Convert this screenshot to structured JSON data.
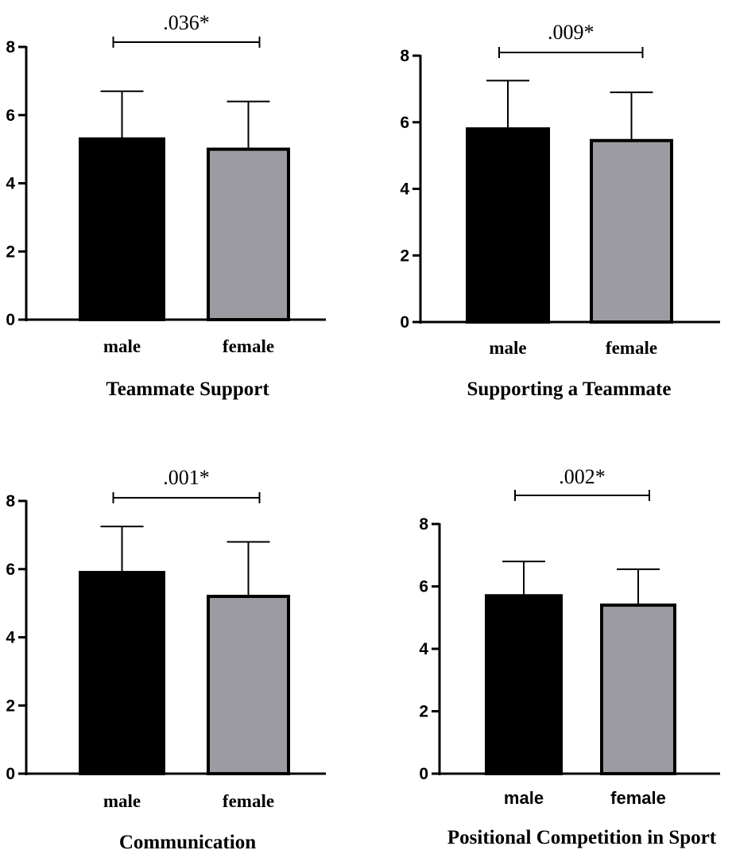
{
  "chart_data": [
    {
      "type": "bar",
      "title": "Teammate Support",
      "categories": [
        "male",
        "female"
      ],
      "values": [
        5.3,
        5.0
      ],
      "error_upper": [
        6.7,
        6.4
      ],
      "ylim": [
        0,
        8
      ],
      "yticks": [
        0,
        2,
        4,
        6,
        8
      ],
      "colors": [
        "#000000",
        "#9c9ba1"
      ],
      "significance": {
        "label": ".036*",
        "between": [
          "male",
          "female"
        ]
      },
      "grid": false,
      "xlabel": "",
      "ylabel": ""
    },
    {
      "type": "bar",
      "title": "Supporting a Teammate",
      "categories": [
        "male",
        "female"
      ],
      "values": [
        5.8,
        5.45
      ],
      "error_upper": [
        7.25,
        6.9
      ],
      "ylim": [
        0,
        8
      ],
      "yticks": [
        0,
        2,
        4,
        6,
        8
      ],
      "colors": [
        "#000000",
        "#9c9ba1"
      ],
      "significance": {
        "label": ".009*",
        "between": [
          "male",
          "female"
        ]
      },
      "grid": false,
      "xlabel": "",
      "ylabel": ""
    },
    {
      "type": "bar",
      "title": "Communication",
      "categories": [
        "male",
        "female"
      ],
      "values": [
        5.9,
        5.2
      ],
      "error_upper": [
        7.25,
        6.8
      ],
      "ylim": [
        0,
        8
      ],
      "yticks": [
        0,
        2,
        4,
        6,
        8
      ],
      "colors": [
        "#000000",
        "#9c9ba1"
      ],
      "significance": {
        "label": ".001*",
        "between": [
          "male",
          "female"
        ]
      },
      "grid": false,
      "xlabel": "",
      "ylabel": ""
    },
    {
      "type": "bar",
      "title": "Positional Competition in Sport",
      "categories": [
        "male",
        "female"
      ],
      "values": [
        5.7,
        5.4
      ],
      "error_upper": [
        6.8,
        6.55
      ],
      "ylim": [
        0,
        8
      ],
      "yticks": [
        0,
        2,
        4,
        6,
        8
      ],
      "colors": [
        "#000000",
        "#9c9ba1"
      ],
      "significance": {
        "label": ".002*",
        "between": [
          "male",
          "female"
        ]
      },
      "grid": false,
      "xlabel": "",
      "ylabel": ""
    }
  ]
}
